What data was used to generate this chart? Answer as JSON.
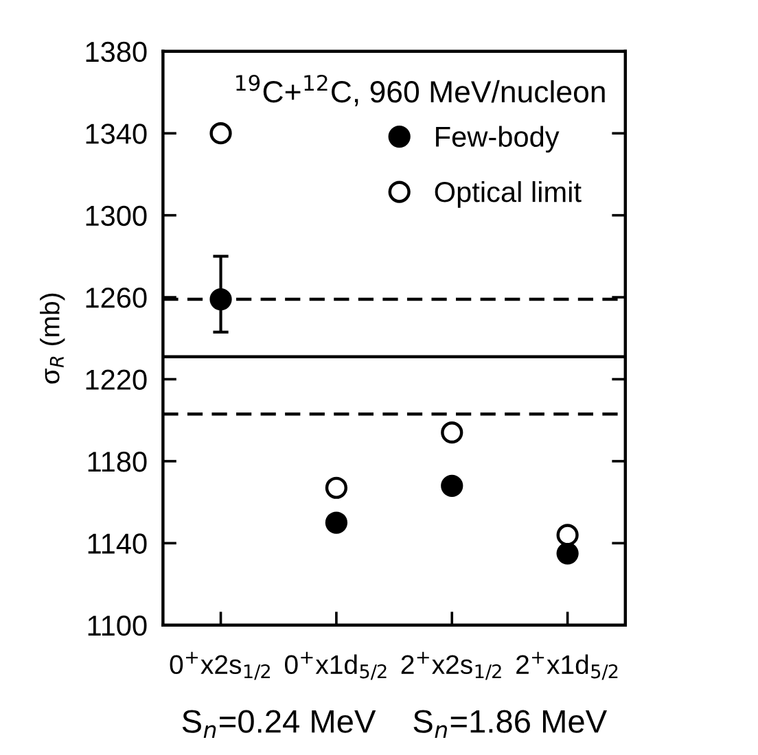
{
  "chart_data": {
    "type": "scatter",
    "title": "$^{19}$C+$^{12}$C, 960 MeV/nucleon",
    "ylabel": "σ$_{R}$ (mb)",
    "categories": [
      "0$^{+}$x2s$_{1/2}$",
      "0$^{+}$x1d$_{5/2}$",
      "2$^{+}$x2s$_{1/2}$",
      "2$^{+}$x1d$_{5/2}$"
    ],
    "series": [
      {
        "name": "Few-body",
        "color": "#000000",
        "values": [
          1259,
          1150,
          1168,
          1135
        ],
        "errors": [
          [
            1243,
            1280
          ],
          null,
          null,
          null
        ]
      },
      {
        "name": "Optical limit",
        "color": "#ffffff",
        "values": [
          1340,
          1167,
          1194,
          1144
        ]
      }
    ],
    "ylim": [
      1100,
      1380
    ],
    "yticks": [
      1100,
      1140,
      1180,
      1220,
      1260,
      1300,
      1340,
      1380
    ],
    "ref_lines": [
      {
        "axis": "y",
        "value": 1259,
        "line_style": "dashed"
      },
      {
        "axis": "y",
        "value": 1231,
        "line_style": "solid"
      },
      {
        "axis": "y",
        "value": 1203,
        "line_style": "dashed"
      }
    ],
    "annotations": [
      "S$_{n}$=0.24 MeV",
      "S$_{n}$=1.86 MeV"
    ],
    "marker": "circle",
    "legend": "top right",
    "grid": false
  }
}
